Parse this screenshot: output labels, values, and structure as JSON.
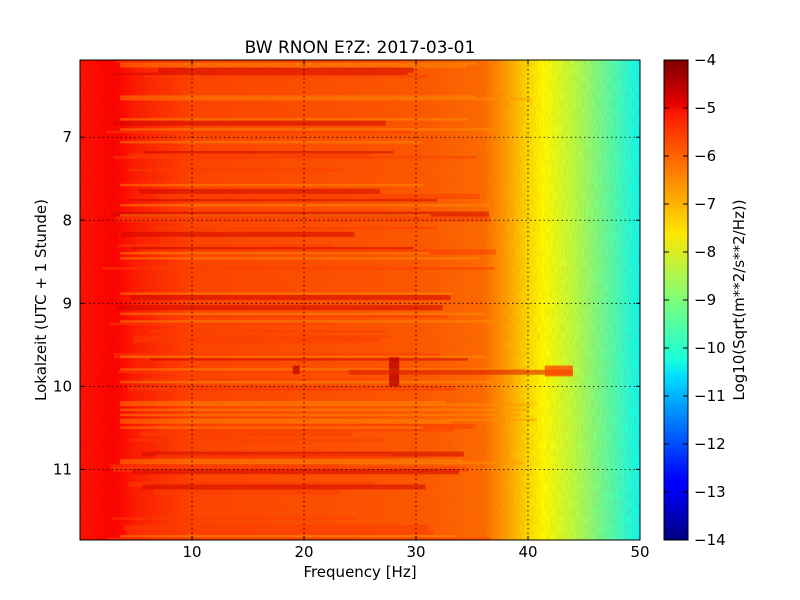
{
  "chart_data": {
    "type": "heatmap",
    "title": "BW RNON E?Z: 2017-03-01",
    "xlabel": "Frequency [Hz]",
    "ylabel": "Lokalzeit (UTC + 1 Stunde)",
    "xlim": [
      0,
      50
    ],
    "ylim": [
      11.85,
      6.07
    ],
    "y_axis_inverted": true,
    "x_ticks": [
      10,
      20,
      30,
      40,
      50
    ],
    "y_ticks": [
      7,
      8,
      9,
      10,
      11
    ],
    "grid": true,
    "colormap": "jet",
    "colorbar": {
      "label": "Log10(Sqrt(m**2/s**2/Hz))",
      "range": [
        -14,
        -4
      ],
      "ticks": [
        -4,
        -5,
        -6,
        -7,
        -8,
        -9,
        -10,
        -11,
        -12,
        -13,
        -14
      ]
    },
    "spectral_profile": {
      "frequency_hz": [
        0,
        3,
        5,
        10,
        20,
        30,
        36,
        38,
        40,
        42,
        44,
        46,
        48,
        50
      ],
      "log10_amplitude": [
        -5.4,
        -5.2,
        -5.5,
        -5.9,
        -6.0,
        -6.1,
        -6.3,
        -6.8,
        -7.4,
        -7.9,
        -8.4,
        -9.0,
        -9.6,
        -10.2
      ]
    },
    "notable_features": [
      "elevated level around 10 Lokalzeit near 28 Hz",
      "elevated band near 42-43 Hz at about 9.8 Lokalzeit"
    ]
  }
}
